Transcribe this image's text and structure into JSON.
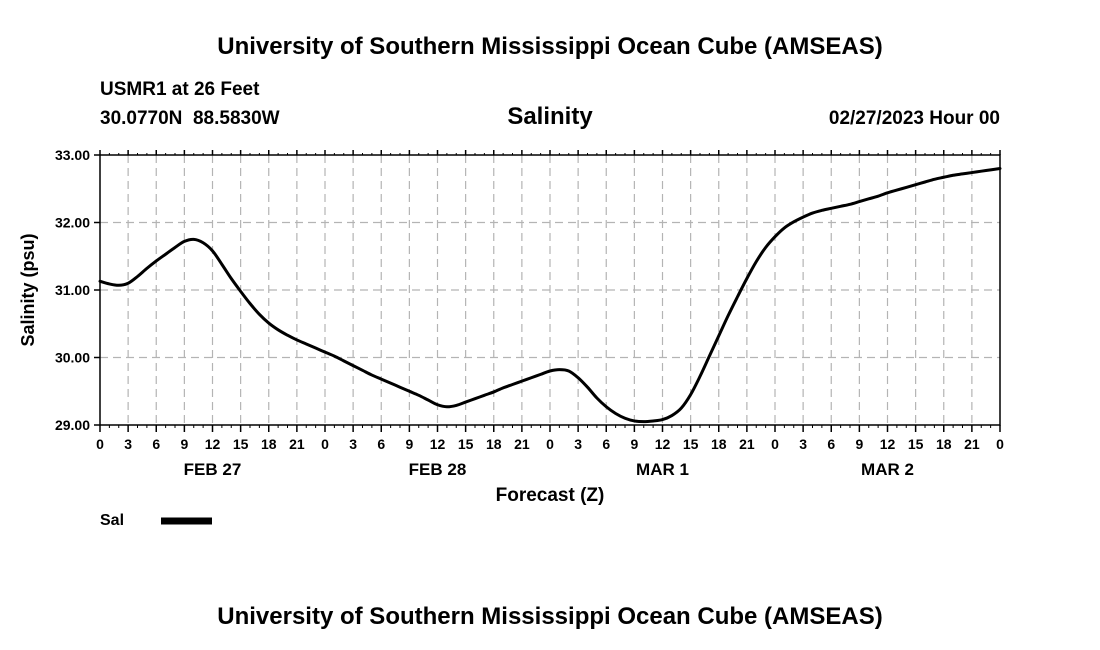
{
  "header": {
    "title": "University of Southern Mississippi Ocean Cube (AMSEAS)",
    "station": "USMR1 at 26 Feet",
    "coords": "30.0770N  88.5830W",
    "chart_title": "Salinity",
    "date": "02/27/2023 Hour 00"
  },
  "footer": {
    "title": "University of Southern Mississippi Ocean Cube (AMSEAS)"
  },
  "chart_data": {
    "type": "line",
    "title": "Salinity",
    "xlabel": "Forecast (Z)",
    "ylabel": "Salinity (psu)",
    "ylim": [
      29.0,
      33.0
    ],
    "xlim": [
      0,
      96
    ],
    "yticks": [
      "29.00",
      "30.00",
      "31.00",
      "32.00",
      "33.00"
    ],
    "ytick_values": [
      29,
      30,
      31,
      32,
      33
    ],
    "x_tick_hours": [
      0,
      3,
      6,
      9,
      12,
      15,
      18,
      21,
      24,
      27,
      30,
      33,
      36,
      39,
      42,
      45,
      48,
      51,
      54,
      57,
      60,
      63,
      66,
      69,
      72,
      75,
      78,
      81,
      84,
      87,
      90,
      93,
      96
    ],
    "x_tick_labels": [
      "0",
      "3",
      "6",
      "9",
      "12",
      "15",
      "18",
      "21",
      "0",
      "3",
      "6",
      "9",
      "12",
      "15",
      "18",
      "21",
      "0",
      "3",
      "6",
      "9",
      "12",
      "15",
      "18",
      "21",
      "0",
      "3",
      "6",
      "9",
      "12",
      "15",
      "18",
      "21",
      "0"
    ],
    "day_labels": [
      {
        "label": "FEB 27",
        "hour": 12
      },
      {
        "label": "FEB 28",
        "hour": 36
      },
      {
        "label": "MAR 1",
        "hour": 60
      },
      {
        "label": "MAR 2",
        "hour": 84
      }
    ],
    "grid": true,
    "legend": {
      "label": "Sal",
      "placement": "bottom-left"
    },
    "series": [
      {
        "name": "Sal",
        "color": "#000000",
        "x": [
          0,
          1,
          2,
          3,
          4,
          5,
          6,
          7,
          8,
          9,
          10,
          11,
          12,
          13,
          14,
          15,
          16,
          17,
          18,
          19,
          20,
          21,
          22,
          23,
          24,
          25,
          26,
          27,
          28,
          29,
          30,
          31,
          32,
          33,
          34,
          35,
          36,
          37,
          38,
          39,
          40,
          41,
          42,
          43,
          44,
          45,
          46,
          47,
          48,
          49,
          50,
          51,
          52,
          53,
          54,
          55,
          56,
          57,
          58,
          59,
          60,
          61,
          62,
          63,
          64,
          65,
          66,
          67,
          68,
          69,
          70,
          71,
          72,
          73,
          74,
          75,
          76,
          77,
          78,
          79,
          80,
          81,
          82,
          83,
          84,
          85,
          86,
          87,
          88,
          89,
          90,
          91,
          92,
          93,
          94,
          95,
          96
        ],
        "values": [
          31.13,
          31.09,
          31.07,
          31.1,
          31.2,
          31.32,
          31.43,
          31.53,
          31.63,
          31.72,
          31.75,
          31.7,
          31.58,
          31.38,
          31.17,
          30.98,
          30.8,
          30.64,
          30.51,
          30.41,
          30.33,
          30.26,
          30.2,
          30.14,
          30.08,
          30.02,
          29.95,
          29.88,
          29.81,
          29.74,
          29.68,
          29.62,
          29.56,
          29.5,
          29.44,
          29.37,
          29.3,
          29.27,
          29.29,
          29.34,
          29.39,
          29.44,
          29.49,
          29.55,
          29.6,
          29.65,
          29.7,
          29.75,
          29.8,
          29.82,
          29.8,
          29.7,
          29.56,
          29.4,
          29.27,
          29.17,
          29.1,
          29.06,
          29.05,
          29.06,
          29.08,
          29.14,
          29.25,
          29.45,
          29.72,
          30.02,
          30.32,
          30.62,
          30.9,
          31.17,
          31.42,
          31.63,
          31.79,
          31.92,
          32.01,
          32.08,
          32.14,
          32.18,
          32.21,
          32.24,
          32.27,
          32.31,
          32.35,
          32.39,
          32.44,
          32.48,
          32.52,
          32.56,
          32.6,
          32.64,
          32.67,
          32.7,
          32.72,
          32.74,
          32.76,
          32.78,
          32.8
        ]
      }
    ]
  }
}
